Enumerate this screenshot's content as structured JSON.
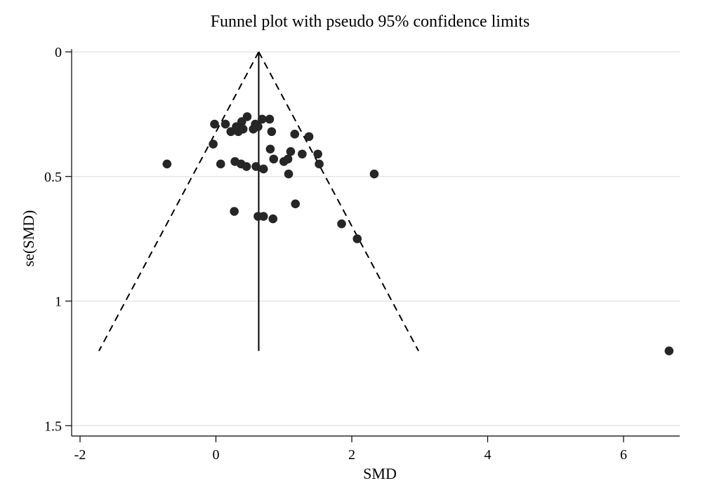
{
  "chart_data": {
    "type": "scatter",
    "title": "Funnel plot with pseudo 95% confidence limits",
    "xlabel": "SMD",
    "ylabel": "se(SMD)",
    "xlim": [
      -2.15,
      6.8
    ],
    "ylim": [
      0,
      1.55
    ],
    "y_inverted": true,
    "xticks": [
      -2,
      0,
      2,
      4,
      6
    ],
    "xtick_labels": [
      "-2",
      "0",
      "2",
      "4",
      "6"
    ],
    "yticks": [
      0,
      0.5,
      1,
      1.5
    ],
    "ytick_labels": [
      "0",
      "0.5",
      "1",
      "1.5"
    ],
    "grid": "horizontal",
    "pooled_effect": 0.63,
    "funnel_max_se": 1.2,
    "funnel_multiplier": 1.96,
    "colors": {
      "points": "#262626",
      "lines": "#000000",
      "grid": "#e6e6e6"
    },
    "points": [
      {
        "x": -0.02,
        "y": 0.29
      },
      {
        "x": 0.14,
        "y": 0.29
      },
      {
        "x": 0.22,
        "y": 0.32
      },
      {
        "x": 0.3,
        "y": 0.3
      },
      {
        "x": 0.33,
        "y": 0.32
      },
      {
        "x": 0.38,
        "y": 0.28
      },
      {
        "x": 0.4,
        "y": 0.31
      },
      {
        "x": 0.46,
        "y": 0.26
      },
      {
        "x": 0.55,
        "y": 0.31
      },
      {
        "x": 0.58,
        "y": 0.29
      },
      {
        "x": 0.62,
        "y": 0.3
      },
      {
        "x": 0.68,
        "y": 0.27
      },
      {
        "x": 0.79,
        "y": 0.27
      },
      {
        "x": 0.82,
        "y": 0.32
      },
      {
        "x": 1.16,
        "y": 0.33
      },
      {
        "x": 1.37,
        "y": 0.34
      },
      {
        "x": -0.04,
        "y": 0.37
      },
      {
        "x": 0.8,
        "y": 0.39
      },
      {
        "x": 1.1,
        "y": 0.4
      },
      {
        "x": 1.27,
        "y": 0.41
      },
      {
        "x": 1.5,
        "y": 0.41
      },
      {
        "x": 0.85,
        "y": 0.43
      },
      {
        "x": 1.0,
        "y": 0.44
      },
      {
        "x": 1.06,
        "y": 0.43
      },
      {
        "x": 0.28,
        "y": 0.44
      },
      {
        "x": 0.37,
        "y": 0.45
      },
      {
        "x": 0.45,
        "y": 0.46
      },
      {
        "x": 0.59,
        "y": 0.46
      },
      {
        "x": 0.7,
        "y": 0.47
      },
      {
        "x": 1.52,
        "y": 0.45
      },
      {
        "x": 0.07,
        "y": 0.45
      },
      {
        "x": -0.72,
        "y": 0.45
      },
      {
        "x": 1.07,
        "y": 0.49
      },
      {
        "x": 2.33,
        "y": 0.49
      },
      {
        "x": 1.17,
        "y": 0.61
      },
      {
        "x": 0.27,
        "y": 0.64
      },
      {
        "x": 0.62,
        "y": 0.66
      },
      {
        "x": 0.7,
        "y": 0.66
      },
      {
        "x": 0.84,
        "y": 0.67
      },
      {
        "x": 1.85,
        "y": 0.69
      },
      {
        "x": 2.08,
        "y": 0.75
      },
      {
        "x": 6.67,
        "y": 1.2
      }
    ]
  }
}
